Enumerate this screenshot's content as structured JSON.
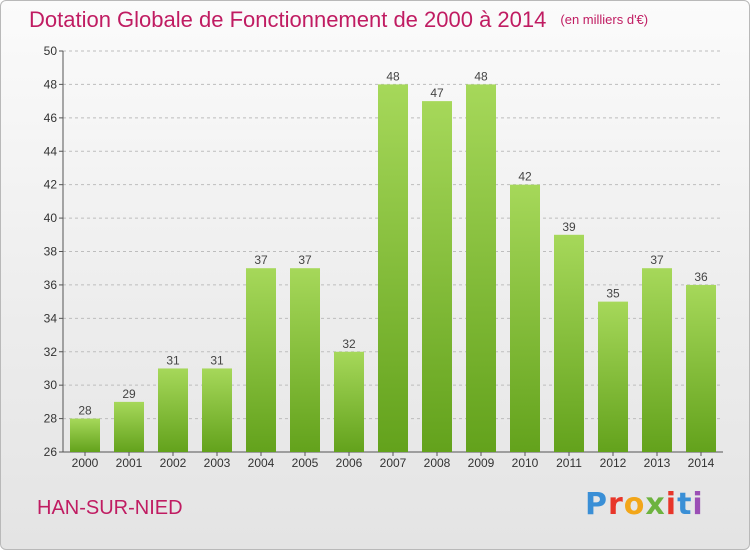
{
  "header": {
    "title": "Dotation Globale de Fonctionnement de 2000 à 2014",
    "unit": "(en milliers d'€)"
  },
  "footer": {
    "commune": "HAN-SUR-NIED",
    "logo_text": "Proxiti",
    "logo_colors": [
      "#3a8fd6",
      "#e8362a",
      "#f2a619",
      "#6db33f",
      "#e8362a",
      "#3a8fd6",
      "#9b4fb5"
    ]
  },
  "colors": {
    "title": "#c01c62",
    "bar_light": "#a6d85a",
    "bar_dark": "#63a21c",
    "grid": "#bdbdbd"
  },
  "chart_data": {
    "type": "bar",
    "title": "Dotation Globale de Fonctionnement de 2000 à 2014",
    "subtitle": "(en milliers d'€)",
    "xlabel": "",
    "ylabel": "",
    "categories": [
      "2000",
      "2001",
      "2002",
      "2003",
      "2004",
      "2005",
      "2006",
      "2007",
      "2008",
      "2009",
      "2010",
      "2011",
      "2012",
      "2013",
      "2014"
    ],
    "values": [
      28,
      29,
      31,
      31,
      37,
      37,
      32,
      48,
      47,
      48,
      42,
      39,
      35,
      37,
      36
    ],
    "ylim": [
      26,
      50
    ],
    "yticks": [
      26,
      28,
      30,
      32,
      34,
      36,
      38,
      40,
      42,
      44,
      46,
      48,
      50
    ],
    "grid": true,
    "legend": "none"
  }
}
